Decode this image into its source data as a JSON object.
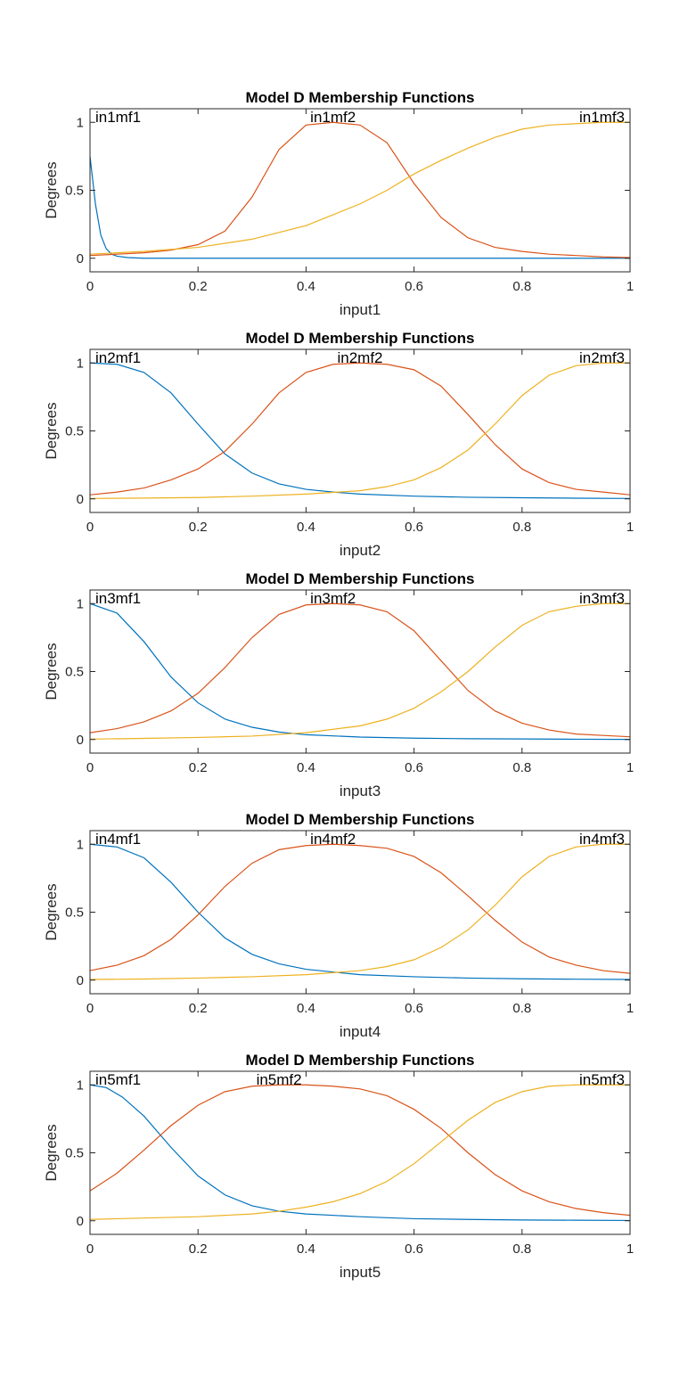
{
  "figure": {
    "background": "#ffffff"
  },
  "chart_data": [
    {
      "type": "line",
      "title": "Model D Membership Functions",
      "xlabel": "input1",
      "ylabel": "Degrees",
      "xlim": [
        0,
        1
      ],
      "ylim": [
        -0.1,
        1.1
      ],
      "xticks": [
        "0",
        "0.2",
        "0.4",
        "0.6",
        "0.8",
        "1"
      ],
      "yticks": [
        "0",
        "0.5",
        "1"
      ],
      "grid": false,
      "series": [
        {
          "name": "in1mf1",
          "color": "#0072BD",
          "x": [
            0,
            0.01,
            0.02,
            0.03,
            0.04,
            0.05,
            0.07,
            0.1,
            0.2,
            0.4,
            0.6,
            0.8,
            1
          ],
          "y": [
            0.75,
            0.4,
            0.17,
            0.07,
            0.03,
            0.015,
            0.005,
            0,
            0,
            0,
            0,
            0,
            0
          ]
        },
        {
          "name": "in1mf2",
          "color": "#D95319",
          "x": [
            0,
            0.05,
            0.1,
            0.15,
            0.2,
            0.25,
            0.3,
            0.35,
            0.4,
            0.45,
            0.5,
            0.55,
            0.6,
            0.65,
            0.7,
            0.75,
            0.8,
            0.85,
            0.9,
            0.95,
            1
          ],
          "y": [
            0.02,
            0.03,
            0.04,
            0.06,
            0.1,
            0.2,
            0.45,
            0.8,
            0.98,
            1,
            0.98,
            0.85,
            0.55,
            0.3,
            0.15,
            0.08,
            0.05,
            0.03,
            0.02,
            0.01,
            0.005
          ]
        },
        {
          "name": "in1mf3",
          "color": "#EDB120",
          "x": [
            0,
            0.1,
            0.2,
            0.3,
            0.4,
            0.5,
            0.55,
            0.6,
            0.65,
            0.7,
            0.75,
            0.8,
            0.85,
            0.9,
            0.95,
            1
          ],
          "y": [
            0.03,
            0.05,
            0.08,
            0.14,
            0.24,
            0.4,
            0.5,
            0.62,
            0.72,
            0.81,
            0.89,
            0.95,
            0.98,
            0.99,
            1,
            1
          ]
        }
      ]
    },
    {
      "type": "line",
      "title": "Model D Membership Functions",
      "xlabel": "input2",
      "ylabel": "Degrees",
      "xlim": [
        0,
        1
      ],
      "ylim": [
        -0.1,
        1.1
      ],
      "xticks": [
        "0",
        "0.2",
        "0.4",
        "0.6",
        "0.8",
        "1"
      ],
      "yticks": [
        "0",
        "0.5",
        "1"
      ],
      "grid": false,
      "series": [
        {
          "name": "in2mf1",
          "color": "#0072BD",
          "x": [
            0,
            0.05,
            0.1,
            0.15,
            0.2,
            0.25,
            0.3,
            0.35,
            0.4,
            0.45,
            0.5,
            0.6,
            0.7,
            0.8,
            0.9,
            1
          ],
          "y": [
            1,
            0.99,
            0.93,
            0.78,
            0.55,
            0.33,
            0.19,
            0.11,
            0.07,
            0.05,
            0.035,
            0.02,
            0.012,
            0.008,
            0.005,
            0.003
          ]
        },
        {
          "name": "in2mf2",
          "color": "#D95319",
          "x": [
            0,
            0.05,
            0.1,
            0.15,
            0.2,
            0.25,
            0.3,
            0.35,
            0.4,
            0.45,
            0.5,
            0.55,
            0.6,
            0.65,
            0.7,
            0.75,
            0.8,
            0.85,
            0.9,
            0.95,
            1
          ],
          "y": [
            0.03,
            0.05,
            0.08,
            0.14,
            0.22,
            0.35,
            0.55,
            0.78,
            0.93,
            0.99,
            1,
            0.99,
            0.95,
            0.83,
            0.62,
            0.4,
            0.22,
            0.12,
            0.07,
            0.05,
            0.03
          ]
        },
        {
          "name": "in2mf3",
          "color": "#EDB120",
          "x": [
            0,
            0.1,
            0.2,
            0.3,
            0.4,
            0.5,
            0.55,
            0.6,
            0.65,
            0.7,
            0.75,
            0.8,
            0.85,
            0.9,
            0.95,
            1
          ],
          "y": [
            0.003,
            0.006,
            0.01,
            0.02,
            0.035,
            0.06,
            0.09,
            0.14,
            0.23,
            0.36,
            0.55,
            0.76,
            0.91,
            0.98,
            1,
            1
          ]
        }
      ]
    },
    {
      "type": "line",
      "title": "Model D Membership Functions",
      "xlabel": "input3",
      "ylabel": "Degrees",
      "xlim": [
        0,
        1
      ],
      "ylim": [
        -0.1,
        1.1
      ],
      "xticks": [
        "0",
        "0.2",
        "0.4",
        "0.6",
        "0.8",
        "1"
      ],
      "yticks": [
        "0",
        "0.5",
        "1"
      ],
      "grid": false,
      "series": [
        {
          "name": "in3mf1",
          "color": "#0072BD",
          "x": [
            0,
            0.05,
            0.1,
            0.15,
            0.2,
            0.25,
            0.3,
            0.35,
            0.4,
            0.5,
            0.6,
            0.7,
            0.8,
            0.9,
            1
          ],
          "y": [
            1,
            0.93,
            0.72,
            0.46,
            0.27,
            0.15,
            0.09,
            0.055,
            0.035,
            0.018,
            0.01,
            0.006,
            0.004,
            0.002,
            0.001
          ]
        },
        {
          "name": "in3mf2",
          "color": "#D95319",
          "x": [
            0,
            0.05,
            0.1,
            0.15,
            0.2,
            0.25,
            0.3,
            0.35,
            0.4,
            0.45,
            0.5,
            0.55,
            0.6,
            0.65,
            0.7,
            0.75,
            0.8,
            0.85,
            0.9,
            0.95,
            1
          ],
          "y": [
            0.05,
            0.08,
            0.13,
            0.21,
            0.34,
            0.53,
            0.75,
            0.92,
            0.99,
            1,
            0.99,
            0.94,
            0.8,
            0.58,
            0.36,
            0.21,
            0.12,
            0.07,
            0.04,
            0.03,
            0.02
          ]
        },
        {
          "name": "in3mf3",
          "color": "#EDB120",
          "x": [
            0,
            0.1,
            0.2,
            0.3,
            0.4,
            0.5,
            0.55,
            0.6,
            0.65,
            0.7,
            0.75,
            0.8,
            0.85,
            0.9,
            0.95,
            1
          ],
          "y": [
            0.003,
            0.008,
            0.015,
            0.025,
            0.05,
            0.1,
            0.15,
            0.23,
            0.35,
            0.5,
            0.68,
            0.84,
            0.94,
            0.98,
            1,
            1
          ]
        }
      ]
    },
    {
      "type": "line",
      "title": "Model D Membership Functions",
      "xlabel": "input4",
      "ylabel": "Degrees",
      "xlim": [
        0,
        1
      ],
      "ylim": [
        -0.1,
        1.1
      ],
      "xticks": [
        "0",
        "0.2",
        "0.4",
        "0.6",
        "0.8",
        "1"
      ],
      "yticks": [
        "0",
        "0.5",
        "1"
      ],
      "grid": false,
      "series": [
        {
          "name": "in4mf1",
          "color": "#0072BD",
          "x": [
            0,
            0.05,
            0.1,
            0.15,
            0.2,
            0.25,
            0.3,
            0.35,
            0.4,
            0.5,
            0.6,
            0.7,
            0.8,
            0.9,
            1
          ],
          "y": [
            1,
            0.98,
            0.9,
            0.72,
            0.5,
            0.31,
            0.19,
            0.12,
            0.08,
            0.04,
            0.025,
            0.015,
            0.01,
            0.007,
            0.005
          ]
        },
        {
          "name": "in4mf2",
          "color": "#D95319",
          "x": [
            0,
            0.05,
            0.1,
            0.15,
            0.2,
            0.25,
            0.3,
            0.35,
            0.4,
            0.45,
            0.5,
            0.55,
            0.6,
            0.65,
            0.7,
            0.75,
            0.8,
            0.85,
            0.9,
            0.95,
            1
          ],
          "y": [
            0.07,
            0.11,
            0.18,
            0.3,
            0.48,
            0.69,
            0.86,
            0.96,
            0.99,
            1,
            0.99,
            0.97,
            0.91,
            0.79,
            0.62,
            0.44,
            0.28,
            0.17,
            0.11,
            0.07,
            0.05
          ]
        },
        {
          "name": "in4mf3",
          "color": "#EDB120",
          "x": [
            0,
            0.1,
            0.2,
            0.3,
            0.4,
            0.5,
            0.55,
            0.6,
            0.65,
            0.7,
            0.75,
            0.8,
            0.85,
            0.9,
            0.95,
            1
          ],
          "y": [
            0.005,
            0.008,
            0.015,
            0.025,
            0.04,
            0.07,
            0.1,
            0.15,
            0.24,
            0.37,
            0.55,
            0.76,
            0.91,
            0.98,
            1,
            1
          ]
        }
      ]
    },
    {
      "type": "line",
      "title": "Model D Membership Functions",
      "xlabel": "input5",
      "ylabel": "Degrees",
      "xlim": [
        0,
        1
      ],
      "ylim": [
        -0.1,
        1.1
      ],
      "xticks": [
        "0",
        "0.2",
        "0.4",
        "0.6",
        "0.8",
        "1"
      ],
      "yticks": [
        "0",
        "0.5",
        "1"
      ],
      "grid": false,
      "series": [
        {
          "name": "in5mf1",
          "color": "#0072BD",
          "x": [
            0,
            0.03,
            0.06,
            0.1,
            0.15,
            0.2,
            0.25,
            0.3,
            0.35,
            0.4,
            0.5,
            0.6,
            0.7,
            0.8,
            0.9,
            1
          ],
          "y": [
            1,
            0.98,
            0.91,
            0.77,
            0.54,
            0.33,
            0.19,
            0.11,
            0.07,
            0.05,
            0.03,
            0.015,
            0.01,
            0.006,
            0.004,
            0.002
          ]
        },
        {
          "name": "in5mf2",
          "color": "#D95319",
          "x": [
            0,
            0.05,
            0.1,
            0.15,
            0.2,
            0.25,
            0.3,
            0.35,
            0.4,
            0.45,
            0.5,
            0.55,
            0.6,
            0.65,
            0.7,
            0.75,
            0.8,
            0.85,
            0.9,
            0.95,
            1
          ],
          "y": [
            0.22,
            0.35,
            0.52,
            0.7,
            0.85,
            0.95,
            0.99,
            1,
            1,
            0.99,
            0.97,
            0.92,
            0.82,
            0.68,
            0.5,
            0.34,
            0.22,
            0.14,
            0.09,
            0.06,
            0.04
          ]
        },
        {
          "name": "in5mf3",
          "color": "#EDB120",
          "x": [
            0,
            0.1,
            0.2,
            0.3,
            0.35,
            0.4,
            0.45,
            0.5,
            0.55,
            0.6,
            0.65,
            0.7,
            0.75,
            0.8,
            0.85,
            0.9,
            0.95,
            1
          ],
          "y": [
            0.01,
            0.02,
            0.03,
            0.05,
            0.07,
            0.1,
            0.14,
            0.2,
            0.29,
            0.42,
            0.58,
            0.74,
            0.87,
            0.95,
            0.99,
            1,
            1,
            1
          ]
        }
      ]
    }
  ]
}
